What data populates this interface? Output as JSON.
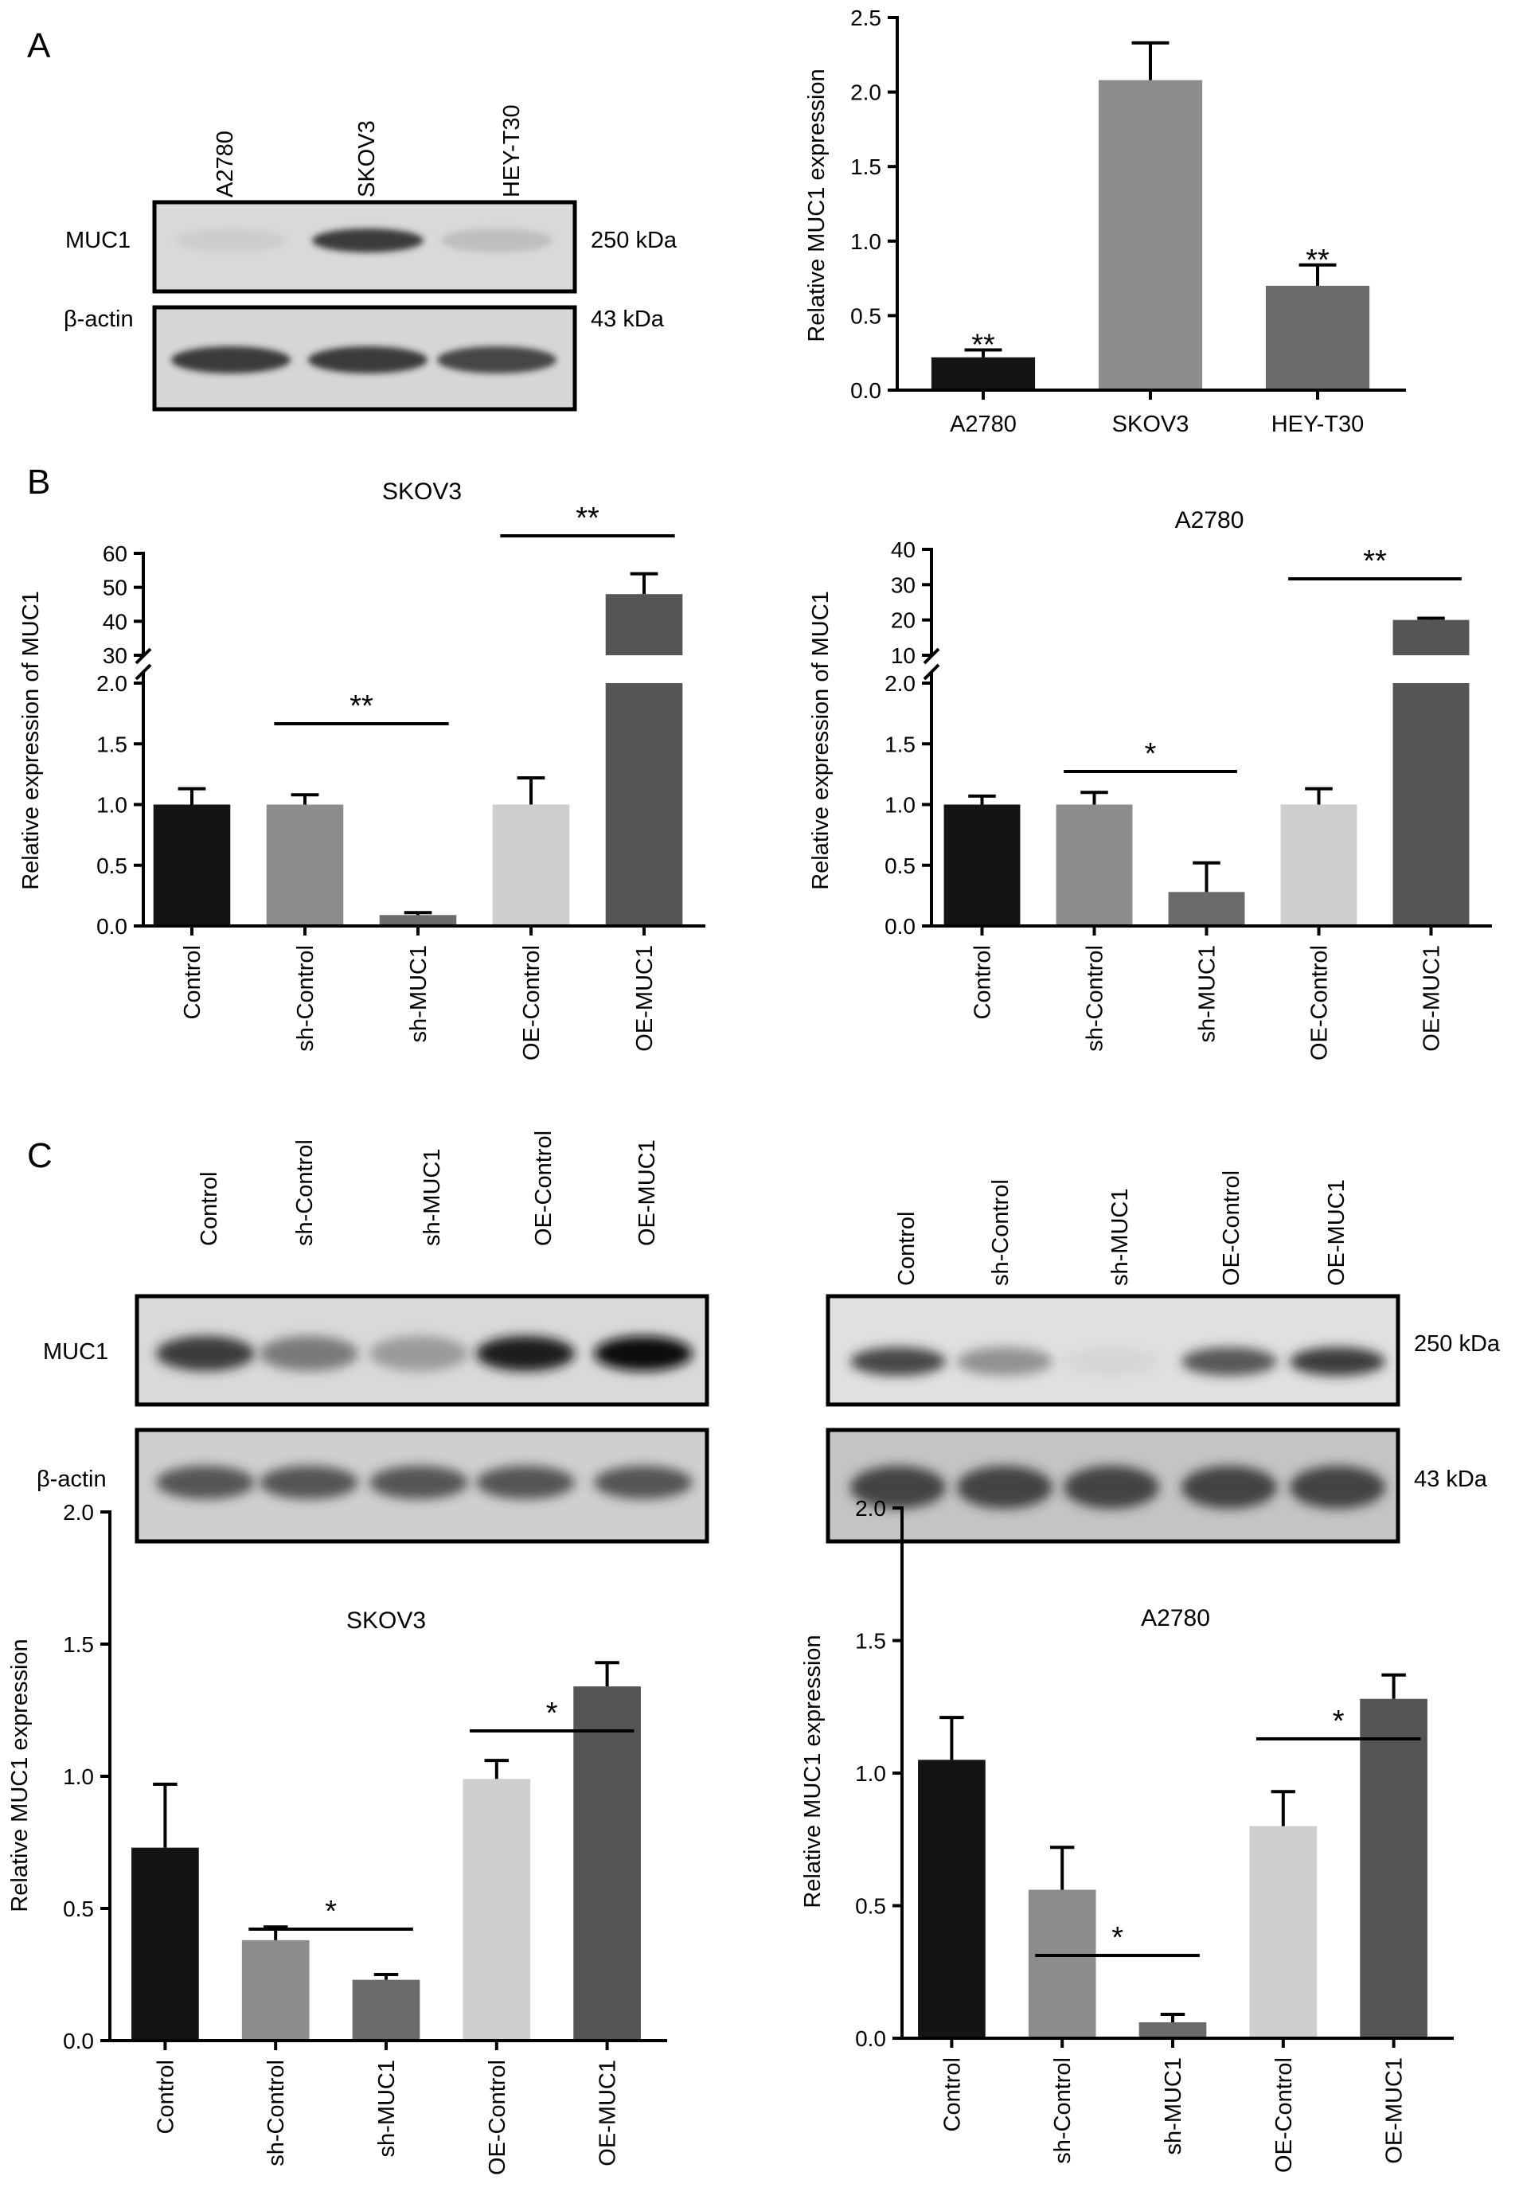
{
  "panels": {
    "A": {
      "letter": "A",
      "blot": {
        "lanes": [
          "A2780",
          "SKOV3",
          "HEY-T30"
        ],
        "proteins": [
          {
            "name": "MUC1",
            "size": "250 kDa",
            "intensity": [
              0.08,
              0.85,
              0.22
            ]
          },
          {
            "name": "β-actin",
            "size": "43 kDa",
            "intensity": [
              0.85,
              0.85,
              0.8
            ]
          }
        ]
      }
    },
    "B": {
      "letter": "B"
    },
    "C": {
      "letter": "C",
      "blot_left": {
        "lanes": [
          "Control",
          "sh-Control",
          "sh-MUC1",
          "OE-Control",
          "OE-MUC1"
        ],
        "proteins": [
          {
            "name": "MUC1",
            "size": "",
            "intensity": [
              0.85,
              0.6,
              0.45,
              0.95,
              1.0
            ]
          },
          {
            "name": "β-actin",
            "size": "",
            "intensity": [
              0.75,
              0.75,
              0.75,
              0.75,
              0.75
            ]
          }
        ]
      },
      "blot_right": {
        "lanes": [
          "Control",
          "sh-Control",
          "sh-MUC1",
          "OE-Control",
          "OE-MUC1"
        ],
        "proteins": [
          {
            "name": "",
            "size": "250 kDa",
            "intensity": [
              0.8,
              0.5,
              0.05,
              0.75,
              0.85
            ]
          },
          {
            "name": "",
            "size": "43 kDa",
            "intensity": [
              0.8,
              0.8,
              0.8,
              0.8,
              0.8
            ]
          }
        ]
      }
    }
  },
  "chart_data": [
    {
      "id": "A-bar",
      "type": "bar",
      "title": "",
      "xlabel": "",
      "ylabel": "Relative MUC1 expression",
      "categories": [
        "A2780",
        "SKOV3",
        "HEY-T30"
      ],
      "values": [
        0.22,
        2.08,
        0.7
      ],
      "errors": [
        0.05,
        0.25,
        0.14
      ],
      "colors": [
        "#141414",
        "#8c8c8c",
        "#6b6b6b"
      ],
      "ylim": [
        0,
        2.5
      ],
      "yticks": [
        "0.0",
        "0.5",
        "1.0",
        "1.5",
        "2.0",
        "2.5"
      ],
      "annotations": [
        {
          "label": "**",
          "bar": 0
        },
        {
          "label": "**",
          "bar": 2
        }
      ],
      "grid": false
    },
    {
      "id": "B-skov3",
      "type": "bar",
      "title": "SKOV3",
      "xlabel": "",
      "ylabel": "Relative expression of MUC1",
      "categories": [
        "Control",
        "sh-Control",
        "sh-MUC1",
        "OE-Control",
        "OE-MUC1"
      ],
      "values": [
        1.0,
        1.0,
        0.09,
        1.0,
        48
      ],
      "errors": [
        0.13,
        0.08,
        0.02,
        0.22,
        6
      ],
      "colors": [
        "#141414",
        "#8c8c8c",
        "#6b6b6b",
        "#cfcfcf",
        "#555555"
      ],
      "y_axis_break": {
        "lower_range": [
          0,
          2.0
        ],
        "upper_range": [
          30,
          60
        ]
      },
      "yticks_lower": [
        "0.0",
        "0.5",
        "1.0",
        "1.5",
        "2.0"
      ],
      "yticks_upper": [
        "30",
        "40",
        "50",
        "60"
      ],
      "comparisons": [
        {
          "from": "sh-Control",
          "to": "sh-MUC1",
          "label": "**"
        },
        {
          "from": "OE-Control",
          "to": "OE-MUC1",
          "label": "**"
        }
      ],
      "grid": false
    },
    {
      "id": "B-a2780",
      "type": "bar",
      "title": "A2780",
      "xlabel": "",
      "ylabel": "Relative expression of MUC1",
      "categories": [
        "Control",
        "sh-Control",
        "sh-MUC1",
        "OE-Control",
        "OE-MUC1"
      ],
      "values": [
        1.0,
        1.0,
        0.28,
        1.0,
        20
      ],
      "errors": [
        0.07,
        0.1,
        0.24,
        0.13,
        0.5
      ],
      "colors": [
        "#141414",
        "#8c8c8c",
        "#6b6b6b",
        "#cfcfcf",
        "#555555"
      ],
      "y_axis_break": {
        "lower_range": [
          0,
          2.0
        ],
        "upper_range": [
          10,
          40
        ]
      },
      "yticks_lower": [
        "0.0",
        "0.5",
        "1.0",
        "1.5",
        "2.0"
      ],
      "yticks_upper": [
        "10",
        "20",
        "30",
        "40"
      ],
      "comparisons": [
        {
          "from": "sh-Control",
          "to": "sh-MUC1",
          "label": "*"
        },
        {
          "from": "OE-Control",
          "to": "OE-MUC1",
          "label": "**"
        }
      ],
      "grid": false
    },
    {
      "id": "C-skov3",
      "type": "bar",
      "title": "SKOV3",
      "xlabel": "",
      "ylabel": "Relative MUC1 expression",
      "categories": [
        "Control",
        "sh-Control",
        "sh-MUC1",
        "OE-Control",
        "OE-MUC1"
      ],
      "values": [
        0.73,
        0.38,
        0.23,
        0.99,
        1.34
      ],
      "errors": [
        0.24,
        0.05,
        0.02,
        0.07,
        0.09
      ],
      "colors": [
        "#141414",
        "#8c8c8c",
        "#6b6b6b",
        "#cfcfcf",
        "#555555"
      ],
      "ylim": [
        0,
        2.0
      ],
      "yticks": [
        "0.0",
        "0.5",
        "1.0",
        "1.5",
        "2.0"
      ],
      "comparisons": [
        {
          "from": "sh-Control",
          "to": "sh-MUC1",
          "label": "*"
        },
        {
          "from": "OE-Control",
          "to": "OE-MUC1",
          "label": "*"
        }
      ],
      "grid": false
    },
    {
      "id": "C-a2780",
      "type": "bar",
      "title": "A2780",
      "xlabel": "",
      "ylabel": "Relative MUC1 expression",
      "categories": [
        "Control",
        "sh-Control",
        "sh-MUC1",
        "OE-Control",
        "OE-MUC1"
      ],
      "values": [
        1.05,
        0.56,
        0.06,
        0.8,
        1.28
      ],
      "errors": [
        0.16,
        0.16,
        0.03,
        0.13,
        0.09
      ],
      "colors": [
        "#141414",
        "#8c8c8c",
        "#6b6b6b",
        "#cfcfcf",
        "#555555"
      ],
      "ylim": [
        0,
        2.0
      ],
      "yticks": [
        "0.0",
        "0.5",
        "1.0",
        "1.5",
        "2.0"
      ],
      "comparisons": [
        {
          "from": "sh-Control",
          "to": "sh-MUC1",
          "label": "*"
        },
        {
          "from": "OE-Control",
          "to": "OE-MUC1",
          "label": "*"
        }
      ],
      "grid": false
    }
  ]
}
